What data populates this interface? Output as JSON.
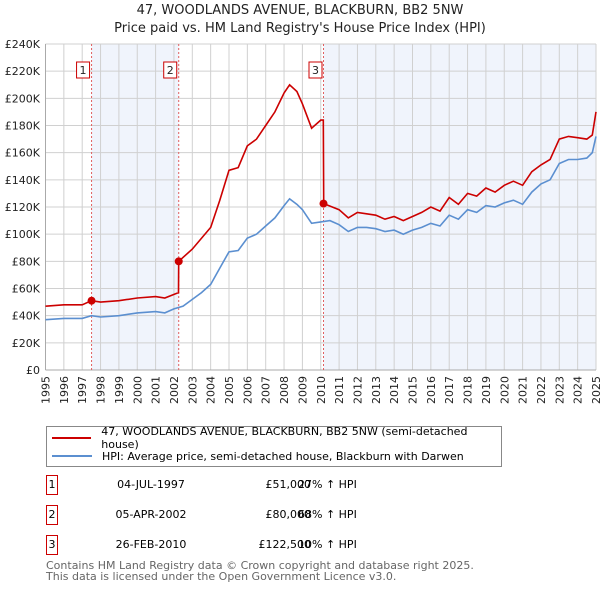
{
  "chart_data": {
    "type": "line",
    "title": "47, WOODLANDS AVENUE, BLACKBURN, BB2 5NW",
    "subtitle": "Price paid vs. HM Land Registry's House Price Index (HPI)",
    "xlim": [
      1995,
      2025
    ],
    "ylim": [
      0,
      240000
    ],
    "y_ticks": [
      0,
      20000,
      40000,
      60000,
      80000,
      100000,
      120000,
      140000,
      160000,
      180000,
      200000,
      220000,
      240000
    ],
    "y_tick_labels": [
      "£0",
      "£20K",
      "£40K",
      "£60K",
      "£80K",
      "£100K",
      "£120K",
      "£140K",
      "£160K",
      "£180K",
      "£200K",
      "£220K",
      "£240K"
    ],
    "x_ticks": [
      "1995",
      "1996",
      "1997",
      "1998",
      "1999",
      "2000",
      "2001",
      "2002",
      "2003",
      "2004",
      "2005",
      "2006",
      "2007",
      "2008",
      "2009",
      "2010",
      "2011",
      "2012",
      "2013",
      "2014",
      "2015",
      "2016",
      "2017",
      "2018",
      "2019",
      "2020",
      "2021",
      "2022",
      "2023",
      "2024",
      "2025"
    ],
    "grid": true,
    "series": [
      {
        "name": "47, WOODLANDS AVENUE, BLACKBURN, BB2 5NW (semi-detached house)",
        "color": "#cc0000",
        "x": [
          1995,
          1996,
          1997,
          1997.5,
          1998,
          1999,
          2000,
          2001,
          2001.5,
          2002.25,
          2002.26,
          2003,
          2004,
          2004.5,
          2005,
          2005.5,
          2006,
          2006.5,
          2007,
          2007.5,
          2008,
          2008.3,
          2008.7,
          2009,
          2009.5,
          2010,
          2010.14,
          2010.16,
          2011,
          2011.5,
          2012,
          2012.5,
          2013,
          2013.5,
          2014,
          2014.5,
          2015,
          2015.5,
          2016,
          2016.5,
          2017,
          2017.5,
          2018,
          2018.5,
          2019,
          2019.5,
          2020,
          2020.5,
          2021,
          2021.5,
          2022,
          2022.5,
          2023,
          2023.5,
          2024,
          2024.5,
          2024.8,
          2025
        ],
        "y": [
          47,
          48,
          48,
          51,
          50,
          51,
          53,
          54,
          53,
          57,
          80,
          89,
          105,
          125,
          147,
          149,
          165,
          170,
          180,
          190,
          204,
          210,
          205,
          196,
          178,
          184,
          184,
          122.5,
          118,
          112,
          116,
          115,
          114,
          111,
          113,
          110,
          113,
          116,
          120,
          117,
          127,
          122,
          130,
          128,
          134,
          131,
          136,
          139,
          136,
          146,
          151,
          155,
          170,
          172,
          171,
          170,
          173,
          190
        ]
      },
      {
        "name": "HPI: Average price, semi-detached house, Blackburn with Darwen",
        "color": "#5b8fd0",
        "x": [
          1995,
          1996,
          1997,
          1997.5,
          1998,
          1999,
          2000,
          2001,
          2001.5,
          2002,
          2002.5,
          2003,
          2003.5,
          2004,
          2004.5,
          2005,
          2005.5,
          2006,
          2006.5,
          2007,
          2007.5,
          2008,
          2008.3,
          2008.7,
          2009,
          2009.5,
          2010,
          2010.5,
          2011,
          2011.5,
          2012,
          2012.5,
          2013,
          2013.5,
          2014,
          2014.5,
          2015,
          2015.5,
          2016,
          2016.5,
          2017,
          2017.5,
          2018,
          2018.5,
          2019,
          2019.5,
          2020,
          2020.5,
          2021,
          2021.5,
          2022,
          2022.5,
          2023,
          2023.5,
          2024,
          2024.5,
          2024.8,
          2025
        ],
        "y": [
          37,
          38,
          38,
          40,
          39,
          40,
          42,
          43,
          42,
          45,
          47,
          52,
          57,
          63,
          75,
          87,
          88,
          97,
          100,
          106,
          112,
          121,
          126,
          122,
          118,
          108,
          109,
          110,
          107,
          102,
          105,
          105,
          104,
          102,
          103,
          100,
          103,
          105,
          108,
          106,
          114,
          111,
          118,
          116,
          121,
          120,
          123,
          125,
          122,
          131,
          137,
          140,
          152,
          155,
          155,
          156,
          160,
          172
        ]
      }
    ],
    "sales": [
      {
        "label": "1",
        "x": 1997.51,
        "value": 51000,
        "date": "04-JUL-1997",
        "price": "£51,000",
        "hpi": "27% ↑ HPI"
      },
      {
        "label": "2",
        "x": 2002.26,
        "value": 80000,
        "date": "05-APR-2002",
        "price": "£80,000",
        "hpi": "68% ↑ HPI"
      },
      {
        "label": "3",
        "x": 2010.15,
        "value": 122500,
        "date": "26-FEB-2010",
        "price": "£122,500",
        "hpi": "10% ↑ HPI"
      }
    ],
    "legend": "below"
  },
  "footer": {
    "line1": "Contains HM Land Registry data © Crown copyright and database right 2025.",
    "line2": "This data is licensed under the Open Government Licence v3.0."
  }
}
